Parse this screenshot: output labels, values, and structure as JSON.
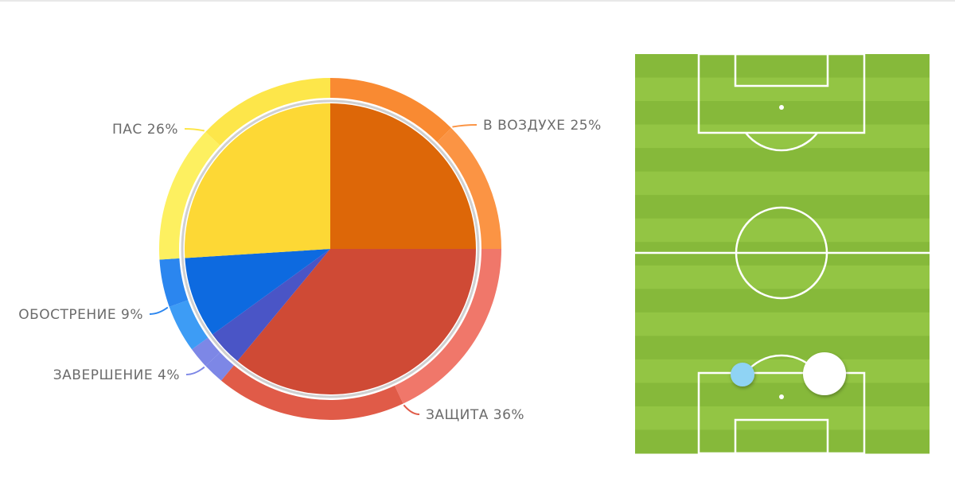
{
  "chart_data": {
    "type": "pie",
    "start": "top",
    "direction": "clockwise",
    "slices": [
      {
        "label": "В ВОЗДУХЕ 25%",
        "value": 25,
        "color": "#dd6708",
        "ring": [
          "#f98a32",
          "#fb9444"
        ]
      },
      {
        "label": "ЗАЩИТА 36%",
        "value": 36,
        "color": "#cf4a35",
        "ring": [
          "#f0776a",
          "#e05b48"
        ]
      },
      {
        "label": "ЗАВЕРШЕНИЕ 4%",
        "value": 4,
        "color": "#4a55c6",
        "ring": [
          "#7d87e6",
          "#7d87e6"
        ]
      },
      {
        "label": "ОБОСТРЕНИЕ 9%",
        "value": 9,
        "color": "#0d6ae0",
        "ring": [
          "#3d9cf5",
          "#2b86ef"
        ]
      },
      {
        "label": "ПАС 26%",
        "value": 26,
        "color": "#fdd835",
        "ring": [
          "#fdf060",
          "#fde64a"
        ]
      }
    ]
  },
  "pitch": {
    "grass_dark": "#86b93a",
    "grass_light": "#93c544",
    "markers": [
      {
        "name": "blue",
        "color": "#8fd3f4"
      },
      {
        "name": "white",
        "color": "#ffffff"
      }
    ]
  }
}
